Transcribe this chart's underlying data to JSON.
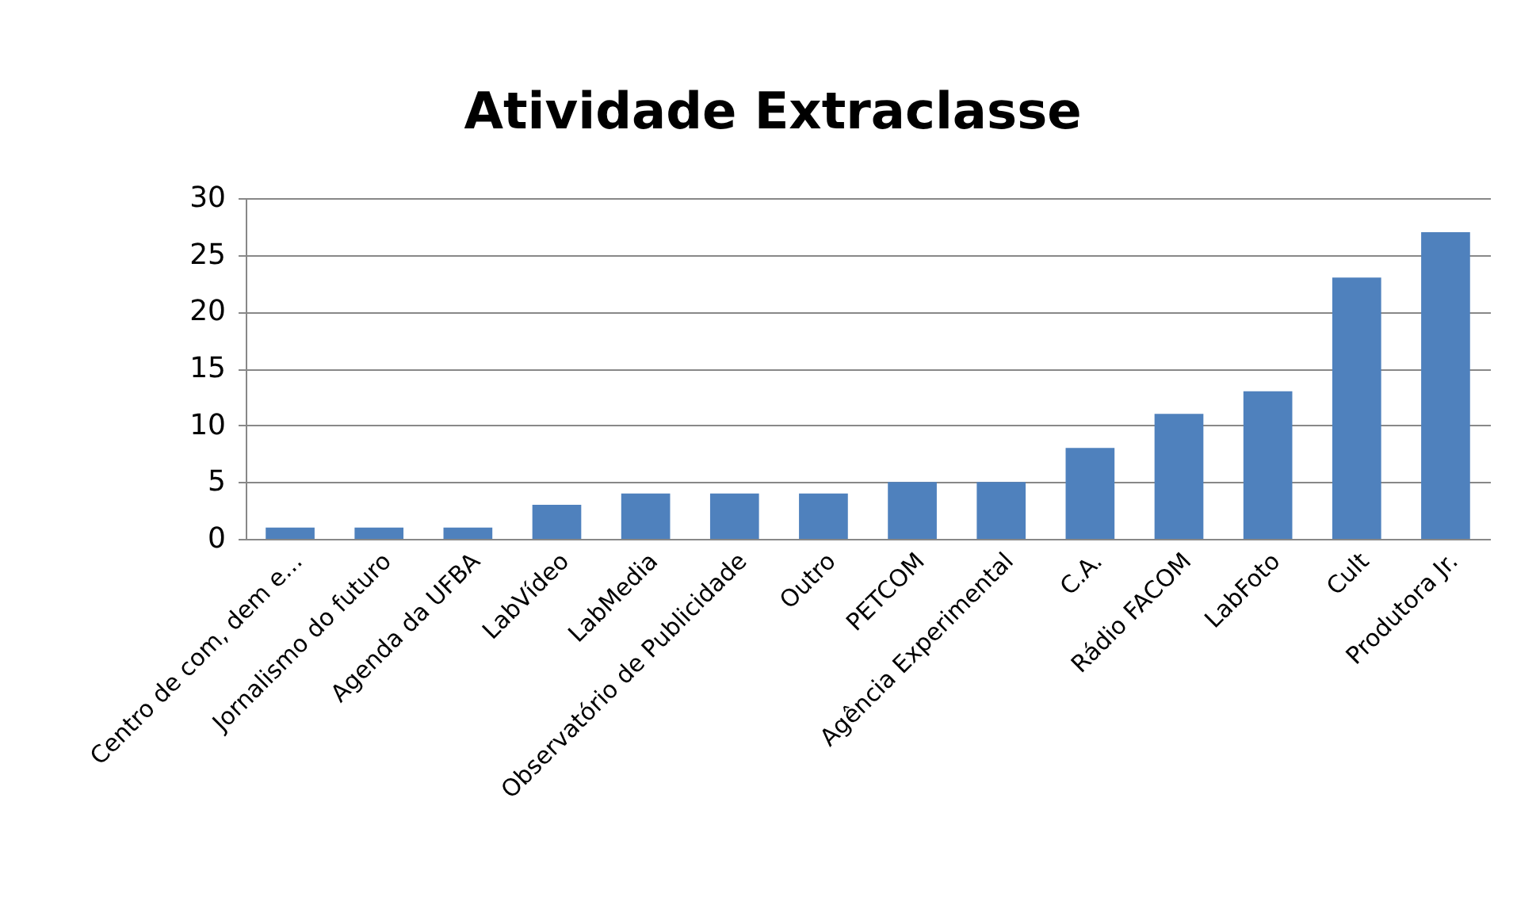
{
  "chart_data": {
    "type": "bar",
    "title": "Atividade Extraclasse",
    "categories": [
      "Centro de com, dem e...",
      "Jornalismo do futuro",
      "Agenda da UFBA",
      "LabVídeo",
      "LabMedia",
      "Observatório de Publicidade",
      "Outro",
      "PETCOM",
      "Agência Experimental",
      "C.A.",
      "Rádio FACOM",
      "LabFoto",
      "Cult",
      "Produtora Jr."
    ],
    "values": [
      1,
      1,
      1,
      3,
      4,
      4,
      4,
      5,
      5,
      8,
      11,
      13,
      23,
      27
    ],
    "color": "#4f81bd",
    "ylim": [
      0,
      30
    ],
    "yticks": [
      0,
      5,
      10,
      15,
      20,
      25,
      30
    ],
    "grid": "y"
  }
}
